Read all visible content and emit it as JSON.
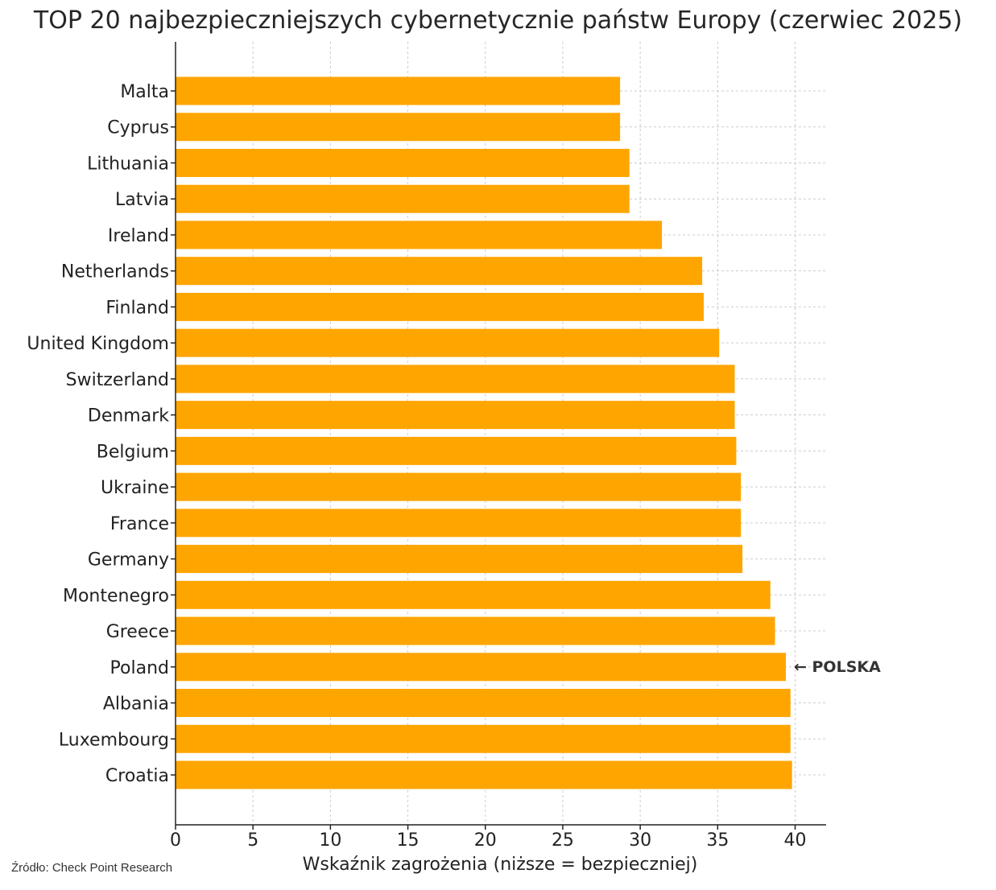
{
  "chart_data": {
    "type": "bar",
    "orientation": "horizontal",
    "title": "TOP 20 najbezpieczniejszych cybernetycznie państw Europy (czerwiec 2025)",
    "xlabel": "Wskaźnik zagrożenia (niższe = bezpieczniej)",
    "ylabel": "",
    "categories": [
      "Malta",
      "Cyprus",
      "Lithuania",
      "Latvia",
      "Ireland",
      "Netherlands",
      "Finland",
      "United Kingdom",
      "Switzerland",
      "Denmark",
      "Belgium",
      "Ukraine",
      "France",
      "Germany",
      "Montenegro",
      "Greece",
      "Poland",
      "Albania",
      "Luxembourg",
      "Croatia"
    ],
    "values": [
      28.7,
      28.7,
      29.3,
      29.3,
      31.4,
      34.0,
      34.1,
      35.1,
      36.1,
      36.1,
      36.2,
      36.5,
      36.5,
      36.6,
      38.4,
      38.7,
      39.4,
      39.7,
      39.7,
      39.8
    ],
    "xlim": [
      0,
      42
    ],
    "xticks": [
      0,
      5,
      10,
      15,
      20,
      25,
      30,
      35,
      40
    ],
    "grid": true,
    "bar_color": "#FFA500",
    "annotation": {
      "category": "Poland",
      "text": "← POLSKA"
    }
  },
  "source": "Źródło: Check Point Research"
}
